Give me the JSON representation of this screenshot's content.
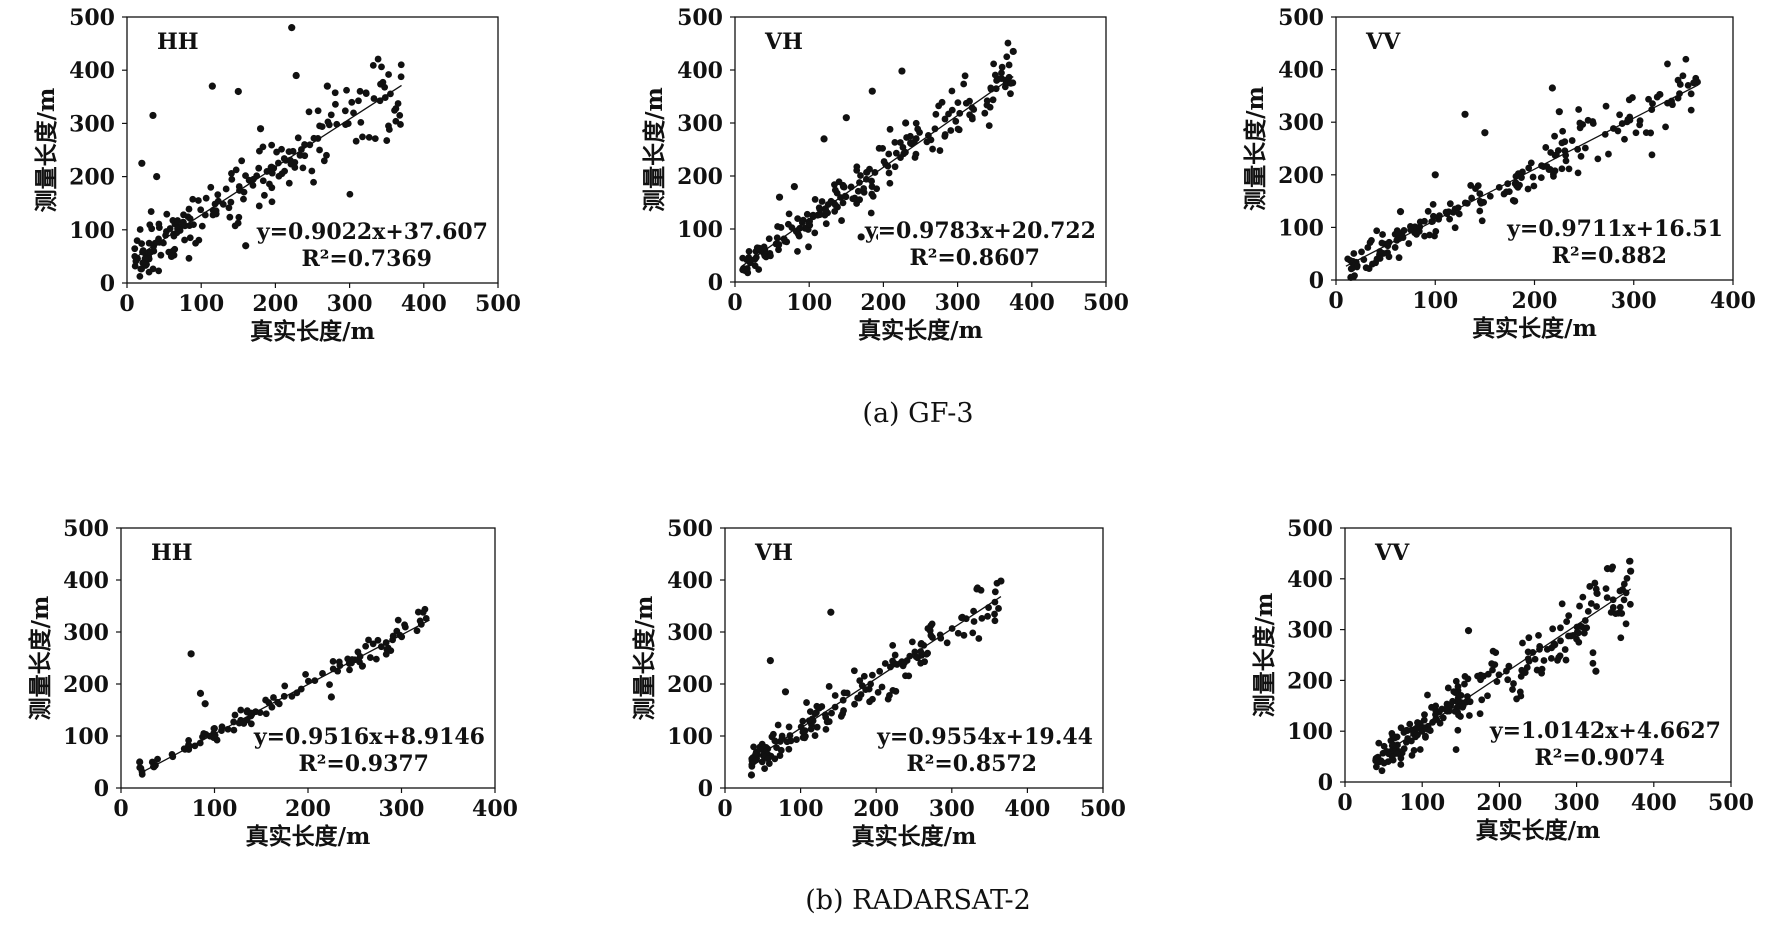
{
  "captions": [
    "(a) GF-3",
    "(b) RADARSAT-2"
  ],
  "chart_data": [
    {
      "type": "scatter",
      "title": "HH",
      "xlabel": "真实长度/m",
      "ylabel": "测量长度/m",
      "xlim": [
        0,
        500
      ],
      "ylim": [
        0,
        500
      ],
      "xticks": [
        "0",
        "100",
        "200",
        "300",
        "400",
        "500"
      ],
      "yticks": [
        "0",
        "100",
        "200",
        "300",
        "400",
        "500"
      ],
      "fit": {
        "slope": 0.9022,
        "intercept": 37.607,
        "equation": "y=0.9022x+37.607",
        "r2": "R²=0.7369"
      },
      "xrange": [
        10,
        370
      ],
      "noise": 30,
      "n": 200,
      "outliers": [
        [
          222,
          480
        ],
        [
          35,
          315
        ],
        [
          115,
          370
        ],
        [
          150,
          360
        ],
        [
          180,
          290
        ],
        [
          228,
          390
        ],
        [
          270,
          370
        ],
        [
          20,
          225
        ],
        [
          40,
          200
        ],
        [
          160,
          70
        ],
        [
          210,
          80
        ],
        [
          60,
          50
        ]
      ]
    },
    {
      "type": "scatter",
      "title": "VH",
      "xlabel": "真实长度/m",
      "ylabel": "测量长度/m",
      "xlim": [
        0,
        500
      ],
      "ylim": [
        0,
        500
      ],
      "xticks": [
        "0",
        "100",
        "200",
        "300",
        "400",
        "500"
      ],
      "yticks": [
        "0",
        "100",
        "200",
        "300",
        "400",
        "500"
      ],
      "fit": {
        "slope": 0.9783,
        "intercept": 20.722,
        "equation": "y=0.9783x+20.722",
        "r2": "R²=0.8607"
      },
      "xrange": [
        10,
        375
      ],
      "noise": 22,
      "n": 200,
      "outliers": [
        [
          225,
          398
        ],
        [
          375,
          435
        ],
        [
          150,
          310
        ],
        [
          185,
          360
        ],
        [
          120,
          270
        ],
        [
          80,
          180
        ],
        [
          170,
          85
        ],
        [
          195,
          85
        ],
        [
          230,
          300
        ],
        [
          60,
          160
        ]
      ]
    },
    {
      "type": "scatter",
      "title": "VV",
      "xlabel": "真实长度/m",
      "ylabel": "测量长度/m",
      "xlim": [
        0,
        400
      ],
      "ylim": [
        0,
        500
      ],
      "xticks": [
        "0",
        "100",
        "200",
        "300",
        "400"
      ],
      "yticks": [
        "0",
        "100",
        "200",
        "300",
        "400",
        "500"
      ],
      "fit": {
        "slope": 0.9711,
        "intercept": 16.51,
        "equation": "y=0.9711x+16.51",
        "r2": "R²=0.882"
      },
      "xrange": [
        10,
        365
      ],
      "noise": 22,
      "n": 190,
      "outliers": [
        [
          218,
          365
        ],
        [
          225,
          320
        ],
        [
          130,
          315
        ],
        [
          150,
          280
        ],
        [
          100,
          200
        ],
        [
          65,
          130
        ],
        [
          200,
          75
        ],
        [
          180,
          150
        ],
        [
          15,
          5
        ]
      ]
    },
    {
      "type": "scatter",
      "title": "HH",
      "xlabel": "真实长度/m",
      "ylabel": "测量长度/m",
      "xlim": [
        0,
        400
      ],
      "ylim": [
        0,
        500
      ],
      "xticks": [
        "0",
        "100",
        "200",
        "300",
        "400"
      ],
      "yticks": [
        "0",
        "100",
        "200",
        "300",
        "400",
        "500"
      ],
      "fit": {
        "slope": 0.9516,
        "intercept": 8.9146,
        "equation": "y=0.9516x+8.9146",
        "r2": "R²=0.9377"
      },
      "xrange": [
        20,
        330
      ],
      "noise": 10,
      "n": 110,
      "outliers": [
        [
          75,
          258
        ],
        [
          85,
          182
        ],
        [
          90,
          162
        ],
        [
          225,
          175
        ],
        [
          20,
          50
        ]
      ]
    },
    {
      "type": "scatter",
      "title": "VH",
      "xlabel": "真实长度/m",
      "ylabel": "测量长度/m",
      "xlim": [
        0,
        500
      ],
      "ylim": [
        0,
        500
      ],
      "xticks": [
        "0",
        "100",
        "200",
        "300",
        "400",
        "500"
      ],
      "yticks": [
        "0",
        "100",
        "200",
        "300",
        "400",
        "500"
      ],
      "fit": {
        "slope": 0.9554,
        "intercept": 19.44,
        "equation": "y=0.9554x+19.44",
        "r2": "R²=0.8572"
      },
      "xrange": [
        35,
        365
      ],
      "noise": 20,
      "n": 170,
      "outliers": [
        [
          60,
          245
        ],
        [
          140,
          338
        ],
        [
          365,
          398
        ],
        [
          35,
          25
        ],
        [
          80,
          185
        ]
      ]
    },
    {
      "type": "scatter",
      "title": "VV",
      "xlabel": "真实长度/m",
      "ylabel": "测量长度/m",
      "xlim": [
        0,
        500
      ],
      "ylim": [
        0,
        500
      ],
      "xticks": [
        "0",
        "100",
        "200",
        "300",
        "400",
        "500"
      ],
      "yticks": [
        "0",
        "100",
        "200",
        "300",
        "400",
        "500"
      ],
      "fit": {
        "slope": 1.0142,
        "intercept": 4.6627,
        "equation": "y=1.0142x+4.6627",
        "r2": "R²=0.9074"
      },
      "xrange": [
        40,
        370
      ],
      "noise": 25,
      "n": 220,
      "outliers": [
        [
          325,
          218
        ],
        [
          340,
          420
        ],
        [
          160,
          298
        ],
        [
          370,
          415
        ],
        [
          40,
          42
        ]
      ]
    }
  ]
}
